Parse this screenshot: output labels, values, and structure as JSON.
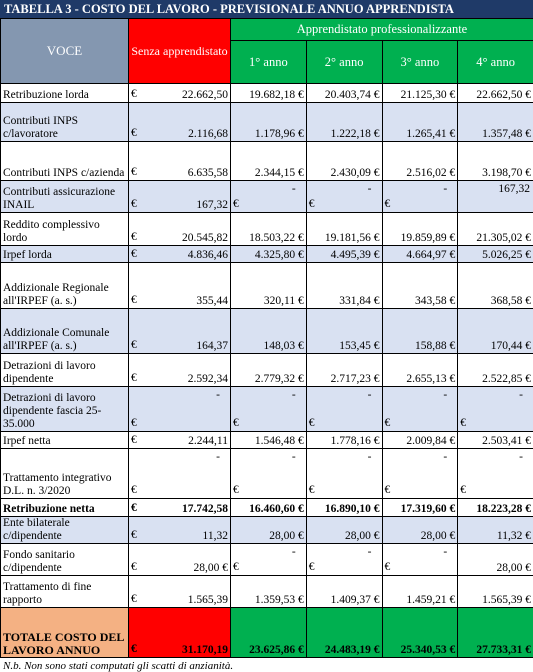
{
  "title": "TABELLA 3 - COSTO DEL LAVORO - PREVISIONALE ANNUO APPRENDISTA",
  "headers": {
    "voce": "VOCE",
    "senza": "Senza apprendistato",
    "apprendistato": "Apprendistato professionalizzante",
    "years": [
      "1° anno",
      "2° anno",
      "3° anno",
      "4° anno"
    ]
  },
  "rows": [
    {
      "label": "Retribuzione lorda",
      "c": "€",
      "cells": [
        "22.662,50",
        "19.682,18 €",
        "20.403,74 €",
        "21.125,30 €",
        "22.662,50 €"
      ]
    },
    {
      "label": "Contributi INPS c/lavoratore",
      "c": "€",
      "cells": [
        "2.116,68",
        "1.178,96 €",
        "1.222,18 €",
        "1.265,41 €",
        "1.357,48 €"
      ]
    },
    {
      "label": "Contributi INPS c/azienda",
      "c": "€",
      "cells": [
        "6.635,58",
        "2.344,15 €",
        "2.430,09 €",
        "2.516,02 €",
        "3.198,70 €"
      ]
    },
    {
      "label": "Contributi assicurazione INAIL",
      "c": "€",
      "cells": [
        "167,32",
        "-",
        "-",
        "-",
        "167,32"
      ]
    },
    {
      "label": "Reddito complessivo lordo",
      "c": "€",
      "cells": [
        "20.545,82",
        "18.503,22 €",
        "19.181,56 €",
        "19.859,89 €",
        "21.305,02 €"
      ]
    },
    {
      "label": "Irpef lorda",
      "c": "€",
      "cells": [
        "4.836,46",
        "4.325,80 €",
        "4.495,39 €",
        "4.664,97 €",
        "5.026,25 €"
      ]
    },
    {
      "label": "Addizionale Regionale all'IRPEF (a. s.)",
      "c": "€",
      "cells": [
        "355,44",
        "320,11 €",
        "331,84 €",
        "343,58 €",
        "368,58 €"
      ]
    },
    {
      "label": "Addizionale Comunale all'IRPEF (a. s.)",
      "c": "€",
      "cells": [
        "164,37",
        "148,03 €",
        "153,45 €",
        "158,88 €",
        "170,44 €"
      ]
    },
    {
      "label": "Detrazioni di lavoro dipendente",
      "c": "€",
      "cells": [
        "2.592,34",
        "2.779,32 €",
        "2.717,23 €",
        "2.655,13 €",
        "2.522,85 €"
      ]
    },
    {
      "label": "Detrazioni di lavoro dipendente fascia 25-35.000",
      "c": "€",
      "cells": [
        "-",
        "-",
        "-",
        "-",
        "-"
      ]
    },
    {
      "label": "Irpef netta",
      "c": "€",
      "cells": [
        "2.244,11",
        "1.546,48 €",
        "1.778,16 €",
        "2.009,84 €",
        "2.503,41 €"
      ]
    },
    {
      "label": "Trattamento integrativo D.L. n. 3/2020",
      "c": "€",
      "cells": [
        "-",
        "-",
        "-",
        "-",
        "-"
      ]
    },
    {
      "label": "Retribuzione netta",
      "c": "€",
      "cells": [
        "17.742,58",
        "16.460,60 €",
        "16.890,10 €",
        "17.319,60 €",
        "18.223,28 €"
      ]
    },
    {
      "label": "Ente bilaterale c/dipendente",
      "c": "€",
      "cells": [
        "11,32",
        "28,00 €",
        "28,00 €",
        "28,00 €",
        "11,32 €"
      ]
    },
    {
      "label": "Fondo sanitario c/dipendente",
      "c": "€",
      "cells": [
        "28,00 €",
        "-",
        "-",
        "-",
        "28,00 €"
      ]
    },
    {
      "label": "Trattamento di fine rapporto",
      "c": "€",
      "cells": [
        "1.565,39",
        "1.359,53 €",
        "1.409,37 €",
        "1.459,21 €",
        "1.565,39 €"
      ]
    },
    {
      "label": "TOTALE COSTO DEL LAVORO ANNUO",
      "c": "€",
      "cells": [
        "31.170,19",
        "23.625,86 €",
        "24.483,19 €",
        "25.340,53 €",
        "27.733,31 €"
      ]
    }
  ],
  "note": "N.b. Non sono stati computati gli scatti di anzianità."
}
